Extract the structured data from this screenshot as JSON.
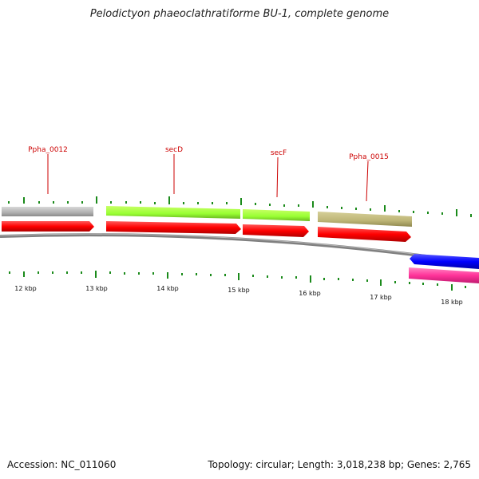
{
  "title": "Pelodictyon phaeoclathratiforme BU-1, complete genome",
  "footer": {
    "accession": "Accession: NC_011060",
    "stats": "Topology: circular; Length: 3,018,238 bp; Genes: 2,765"
  },
  "gene_labels": [
    "Ppha_0012",
    "secD",
    "secF",
    "Ppha_0015"
  ],
  "kbp_labels": [
    "12 kbp",
    "13 kbp",
    "14 kbp",
    "15 kbp",
    "16 kbp",
    "17 kbp",
    "18 kbp"
  ],
  "colors": {
    "cds_forward": "#ff0000",
    "cds_reverse": "#0000ff",
    "cog_gray": "#b8b8b8",
    "cog_green": "#99ff33",
    "cog_olive": "#bdb576",
    "cog_magenta": "#ff3399",
    "backbone": "#808080",
    "ticks": "#1a8a1a",
    "label_red": "#cc0000"
  }
}
